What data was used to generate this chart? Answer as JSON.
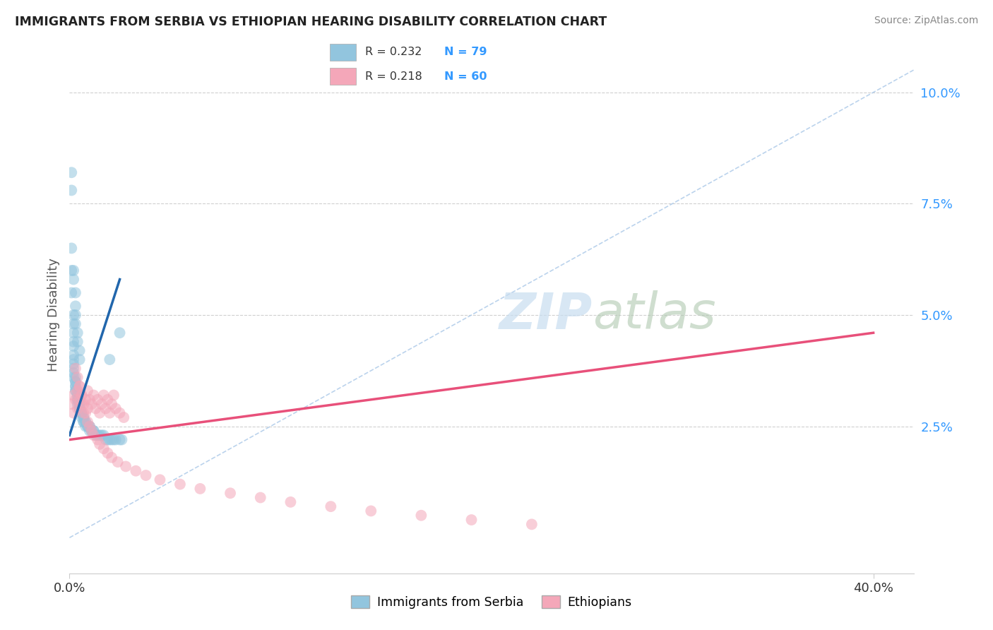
{
  "title": "IMMIGRANTS FROM SERBIA VS ETHIOPIAN HEARING DISABILITY CORRELATION CHART",
  "source": "Source: ZipAtlas.com",
  "ylabel": "Hearing Disability",
  "legend_r1": "R = 0.232",
  "legend_n1": "N = 79",
  "legend_r2": "R = 0.218",
  "legend_n2": "N = 60",
  "blue_color": "#92c5de",
  "pink_color": "#f4a7b9",
  "blue_line_color": "#2166ac",
  "pink_line_color": "#e8507a",
  "legend_text_color": "#3399ff",
  "title_color": "#222222",
  "background_color": "#ffffff",
  "grid_color": "#d0d0d0",
  "xlim": [
    0.0,
    0.42
  ],
  "ylim": [
    -0.008,
    0.108
  ],
  "serbia_x": [
    0.001,
    0.001,
    0.001,
    0.001,
    0.001,
    0.002,
    0.002,
    0.002,
    0.002,
    0.002,
    0.002,
    0.002,
    0.002,
    0.002,
    0.002,
    0.002,
    0.003,
    0.003,
    0.003,
    0.003,
    0.003,
    0.003,
    0.003,
    0.004,
    0.004,
    0.004,
    0.004,
    0.004,
    0.004,
    0.005,
    0.005,
    0.005,
    0.005,
    0.005,
    0.006,
    0.006,
    0.006,
    0.006,
    0.007,
    0.007,
    0.007,
    0.007,
    0.008,
    0.008,
    0.008,
    0.009,
    0.009,
    0.01,
    0.01,
    0.01,
    0.011,
    0.011,
    0.012,
    0.012,
    0.013,
    0.014,
    0.015,
    0.016,
    0.017,
    0.018,
    0.019,
    0.02,
    0.02,
    0.021,
    0.022,
    0.023,
    0.025,
    0.025,
    0.026,
    0.002,
    0.002,
    0.003,
    0.003,
    0.003,
    0.003,
    0.004,
    0.004,
    0.005,
    0.005
  ],
  "serbia_y": [
    0.082,
    0.078,
    0.065,
    0.06,
    0.055,
    0.05,
    0.048,
    0.046,
    0.044,
    0.043,
    0.041,
    0.04,
    0.039,
    0.038,
    0.037,
    0.036,
    0.036,
    0.035,
    0.035,
    0.034,
    0.034,
    0.033,
    0.033,
    0.033,
    0.032,
    0.032,
    0.031,
    0.031,
    0.03,
    0.03,
    0.03,
    0.029,
    0.029,
    0.029,
    0.028,
    0.028,
    0.028,
    0.027,
    0.027,
    0.027,
    0.026,
    0.026,
    0.026,
    0.026,
    0.025,
    0.025,
    0.025,
    0.025,
    0.025,
    0.024,
    0.024,
    0.024,
    0.024,
    0.024,
    0.023,
    0.023,
    0.023,
    0.023,
    0.023,
    0.022,
    0.022,
    0.022,
    0.04,
    0.022,
    0.022,
    0.022,
    0.022,
    0.046,
    0.022,
    0.06,
    0.058,
    0.055,
    0.052,
    0.05,
    0.048,
    0.046,
    0.044,
    0.042,
    0.04
  ],
  "ethiopia_x": [
    0.001,
    0.002,
    0.002,
    0.003,
    0.004,
    0.004,
    0.005,
    0.005,
    0.006,
    0.006,
    0.007,
    0.008,
    0.009,
    0.009,
    0.01,
    0.011,
    0.012,
    0.013,
    0.014,
    0.015,
    0.016,
    0.017,
    0.018,
    0.019,
    0.02,
    0.021,
    0.022,
    0.023,
    0.025,
    0.027,
    0.003,
    0.004,
    0.005,
    0.006,
    0.007,
    0.008,
    0.009,
    0.01,
    0.011,
    0.012,
    0.014,
    0.015,
    0.017,
    0.019,
    0.021,
    0.024,
    0.028,
    0.033,
    0.038,
    0.045,
    0.055,
    0.065,
    0.08,
    0.095,
    0.11,
    0.13,
    0.15,
    0.175,
    0.2,
    0.23
  ],
  "ethiopia_y": [
    0.03,
    0.032,
    0.028,
    0.031,
    0.029,
    0.033,
    0.031,
    0.034,
    0.03,
    0.032,
    0.028,
    0.031,
    0.029,
    0.033,
    0.031,
    0.03,
    0.032,
    0.029,
    0.031,
    0.028,
    0.03,
    0.032,
    0.029,
    0.031,
    0.028,
    0.03,
    0.032,
    0.029,
    0.028,
    0.027,
    0.038,
    0.036,
    0.034,
    0.032,
    0.03,
    0.028,
    0.026,
    0.025,
    0.024,
    0.023,
    0.022,
    0.021,
    0.02,
    0.019,
    0.018,
    0.017,
    0.016,
    0.015,
    0.014,
    0.013,
    0.012,
    0.011,
    0.01,
    0.009,
    0.008,
    0.007,
    0.006,
    0.005,
    0.004,
    0.003
  ],
  "blue_line_x0": 0.0,
  "blue_line_y0": 0.023,
  "blue_line_x1": 0.025,
  "blue_line_y1": 0.058,
  "pink_line_x0": 0.0,
  "pink_line_x1": 0.4,
  "pink_line_y0": 0.022,
  "pink_line_y1": 0.046,
  "ref_line_x0": 0.0,
  "ref_line_y0": 0.0,
  "ref_line_x1": 0.42,
  "ref_line_y1": 0.105
}
